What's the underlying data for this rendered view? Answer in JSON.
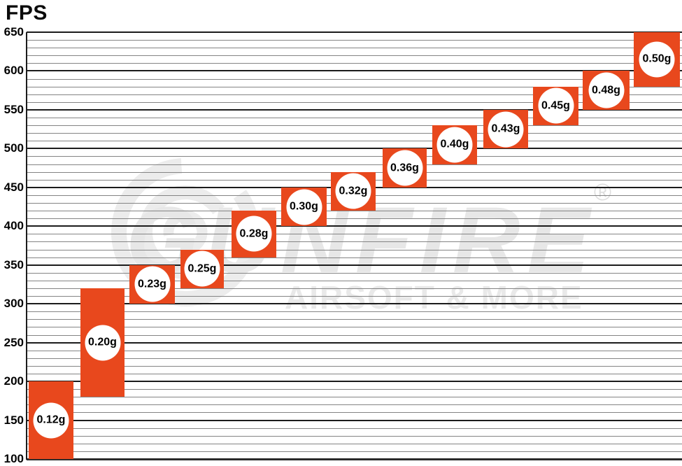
{
  "title": "FPS",
  "watermark": {
    "brand": "GUNFIRE",
    "registered": "®",
    "tagline": "AIRSOFT & MORE"
  },
  "colors": {
    "block_orange": "#e8481d",
    "major_grid": "#1c1c1c",
    "minor_grid": "#848484",
    "baseline_grid": "#2b2b2b",
    "watermark_gray": "#ececec"
  },
  "chart_data": {
    "type": "bar",
    "title": "FPS",
    "ylabel": "FPS",
    "xlabel": "",
    "ylim": [
      100,
      650
    ],
    "y_ticks": [
      100,
      150,
      200,
      250,
      300,
      350,
      400,
      450,
      500,
      550,
      600,
      650
    ],
    "y_minor_step": 10,
    "grid": "horizontal",
    "legend": "none",
    "series": [
      {
        "label": "0.12g",
        "fps_min": 100,
        "fps_max": 200
      },
      {
        "label": "0.20g",
        "fps_min": 180,
        "fps_max": 320
      },
      {
        "label": "0.23g",
        "fps_min": 300,
        "fps_max": 350
      },
      {
        "label": "0.25g",
        "fps_min": 320,
        "fps_max": 370
      },
      {
        "label": "0.28g",
        "fps_min": 360,
        "fps_max": 420
      },
      {
        "label": "0.30g",
        "fps_min": 400,
        "fps_max": 450
      },
      {
        "label": "0.32g",
        "fps_min": 420,
        "fps_max": 470
      },
      {
        "label": "0.36g",
        "fps_min": 450,
        "fps_max": 500
      },
      {
        "label": "0.40g",
        "fps_min": 480,
        "fps_max": 530
      },
      {
        "label": "0.43g",
        "fps_min": 500,
        "fps_max": 550
      },
      {
        "label": "0.45g",
        "fps_min": 530,
        "fps_max": 580
      },
      {
        "label": "0.48g",
        "fps_min": 550,
        "fps_max": 600
      },
      {
        "label": "0.50g",
        "fps_min": 580,
        "fps_max": 650
      }
    ]
  }
}
